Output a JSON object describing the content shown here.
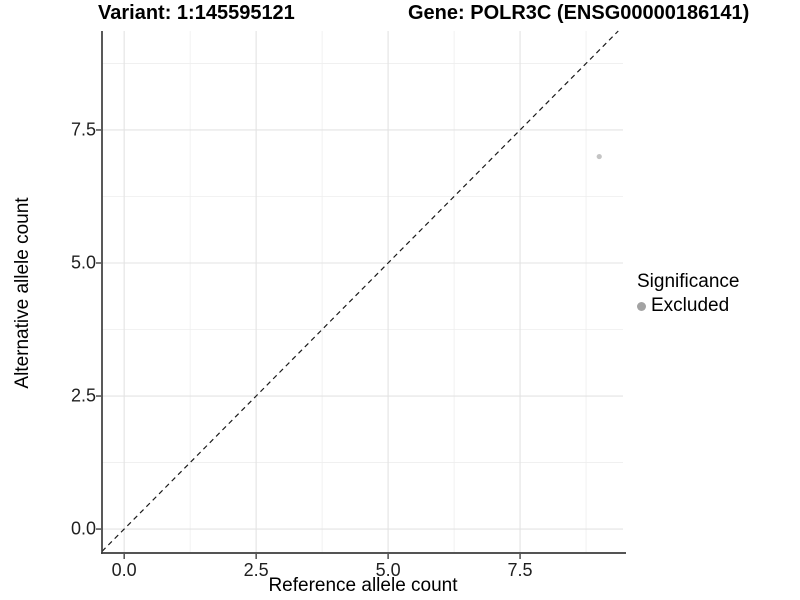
{
  "chart_data": {
    "type": "scatter",
    "title_left": "Variant: 1:145595121",
    "title_right": "Gene: POLR3C (ENSG00000186141)",
    "xlabel": "Reference allele count",
    "ylabel": "Alternative allele count",
    "x_ticks": [
      0,
      2.5,
      5,
      7.5
    ],
    "x_tick_labels": [
      "0.0",
      "2.5",
      "5.0",
      "7.5"
    ],
    "y_ticks": [
      0,
      2.5,
      5,
      7.5
    ],
    "y_tick_labels": [
      "0.0",
      "2.5",
      "5.0",
      "7.5"
    ],
    "xlim": [
      -0.42,
      9.45
    ],
    "ylim": [
      -0.45,
      9.36
    ],
    "minor_tick_step": 1.25,
    "grid": true,
    "identity_line": {
      "slope": 1,
      "intercept": 0,
      "style": "dashed"
    },
    "points": [
      {
        "x": 9,
        "y": 7,
        "series": "Excluded"
      }
    ],
    "legend": {
      "title": "Significance",
      "position": "right",
      "items": [
        {
          "label": "Excluded",
          "color": "#a3a3a3"
        }
      ]
    },
    "colors": {
      "point": "#c4c4c4",
      "grid_major": "#e3e3e3",
      "grid_minor": "#eeeeee",
      "axis_line": "#3c3c3c",
      "tick_mark": "#333333",
      "dashed_line": "#1a1a1a",
      "background": "#ffffff"
    }
  }
}
